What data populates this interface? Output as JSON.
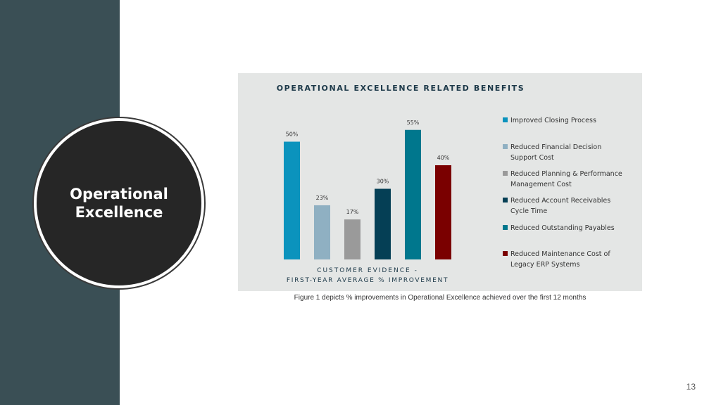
{
  "section_title": "Operational Excellence",
  "caption": "Figure 1 depicts % improvements in Operational Excellence achieved over the first 12 months",
  "page_number": "13",
  "colors": {
    "panel": "#3a4f55",
    "circle": "#262626",
    "chart_bg": "#e4e6e5"
  },
  "chart_data": {
    "type": "bar",
    "title": "OPERATIONAL EXCELLENCE RELATED BENEFITS",
    "xlabel_line1": "CUSTOMER EVIDENCE -",
    "xlabel_line2": "FIRST-YEAR AVERAGE % IMPROVEMENT",
    "ylabel": "",
    "ylim": [
      0,
      60
    ],
    "legend_position": "right",
    "grid": false,
    "bars": [
      {
        "legend": [
          "Improved Closing Process"
        ],
        "value": 50,
        "label": "50%",
        "color": "#0b93bd"
      },
      {
        "legend": [
          "Reduced Financial Decision",
          "Support Cost"
        ],
        "value": 23,
        "label": "23%",
        "color": "#8fb0c2"
      },
      {
        "legend": [
          "Reduced Planning & Performance",
          "Management Cost"
        ],
        "value": 17,
        "label": "17%",
        "color": "#9a9a9a"
      },
      {
        "legend": [
          "Reduced Account Receivables",
          "Cycle Time"
        ],
        "value": 30,
        "label": "30%",
        "color": "#053f55"
      },
      {
        "legend": [
          "Reduced Outstanding Payables"
        ],
        "value": 55,
        "label": "55%",
        "color": "#00778d"
      },
      {
        "legend": [
          "Reduced Maintenance Cost of",
          "Legacy ERP Systems"
        ],
        "value": 40,
        "label": "40%",
        "color": "#7a0000"
      }
    ]
  }
}
